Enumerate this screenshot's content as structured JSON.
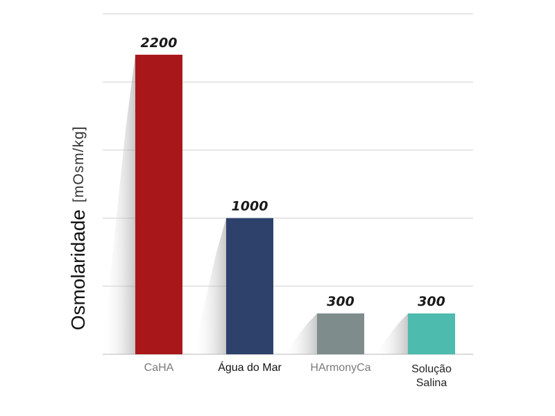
{
  "chart_data": {
    "type": "bar",
    "categories": [
      "CaHA",
      "Água do Mar",
      "HArmonyCa",
      "Solução Salina"
    ],
    "category_lines": [
      [
        "CaHA"
      ],
      [
        "Água do Mar"
      ],
      [
        "HArmonyCa"
      ],
      [
        "Solução",
        "Salina"
      ]
    ],
    "values": [
      2200,
      1000,
      300,
      300
    ],
    "value_labels": [
      "2200",
      "1000",
      "300",
      "300"
    ],
    "ylabel": "Osmolaridade",
    "ylabel_unit": "[mOsm/kg]",
    "ylim": [
      0,
      2500
    ],
    "gridlines": [
      0,
      500,
      1000,
      1500,
      2000,
      2500
    ],
    "grid": true,
    "colors": [
      "#a8181b",
      "#2d416b",
      "#7e8c8b",
      "#4dbbad"
    ],
    "category_label_colors": [
      "#7a7a7a",
      "#111111",
      "#7a7a7a",
      "#222222"
    ]
  }
}
